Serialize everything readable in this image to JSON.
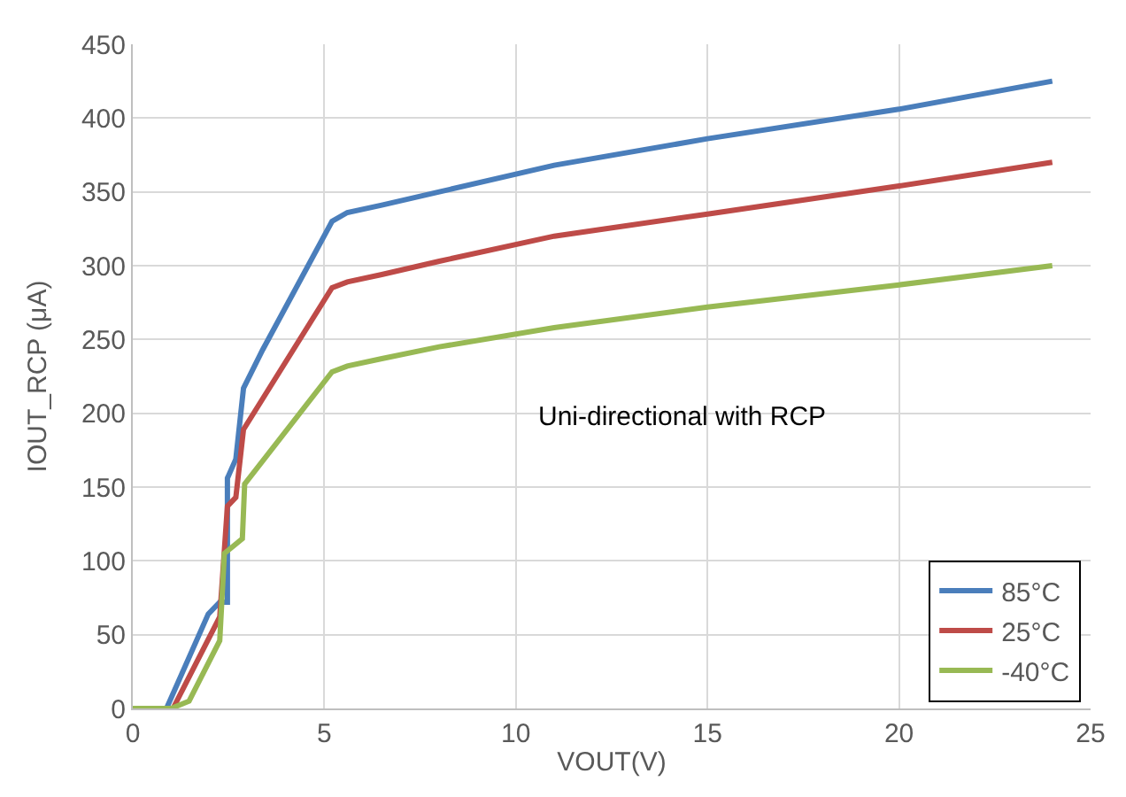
{
  "chart_data": {
    "type": "line",
    "xlabel": "VOUT(V)",
    "ylabel": "IOUT_RCP (μA)",
    "annotations": [
      "Uni-directional with RCP"
    ],
    "xlim": [
      0,
      25
    ],
    "xticks": [
      0,
      5,
      10,
      15,
      20,
      25
    ],
    "ylim": [
      0,
      450
    ],
    "yticks": [
      0,
      50,
      100,
      150,
      200,
      250,
      300,
      350,
      400,
      450
    ],
    "grid": true,
    "legend": "bottom right",
    "marker": "none",
    "line_style": "solid",
    "series": [
      {
        "name": "85°C",
        "color": "#4a7ebb",
        "x": [
          0,
          0.88,
          1.97,
          2.27,
          2.47,
          2.47,
          2.69,
          2.89,
          3.39,
          5.2,
          5.6,
          6.5,
          8,
          11,
          15,
          20,
          24
        ],
        "values": [
          0,
          0,
          64,
          72,
          72,
          156,
          169,
          217,
          243,
          330,
          336,
          341,
          350,
          368,
          386,
          406,
          425
        ]
      },
      {
        "name": "25°C",
        "color": "#be4b48",
        "x": [
          0,
          1.05,
          2.27,
          2.47,
          2.69,
          2.89,
          5.2,
          5.6,
          6.5,
          8,
          11,
          15,
          20,
          24
        ],
        "values": [
          0,
          0,
          62,
          137,
          143,
          189,
          285,
          289,
          294,
          303,
          320,
          335,
          354,
          370
        ]
      },
      {
        "name": "-40°C",
        "color": "#98b954",
        "x": [
          0,
          1.0,
          1.47,
          2.27,
          2.39,
          2.86,
          2.92,
          5.2,
          5.6,
          6.5,
          8,
          11,
          15,
          20,
          24
        ],
        "values": [
          0,
          0,
          5,
          46,
          105,
          115,
          152,
          228,
          232,
          237,
          245,
          258,
          272,
          287,
          300
        ]
      }
    ]
  }
}
